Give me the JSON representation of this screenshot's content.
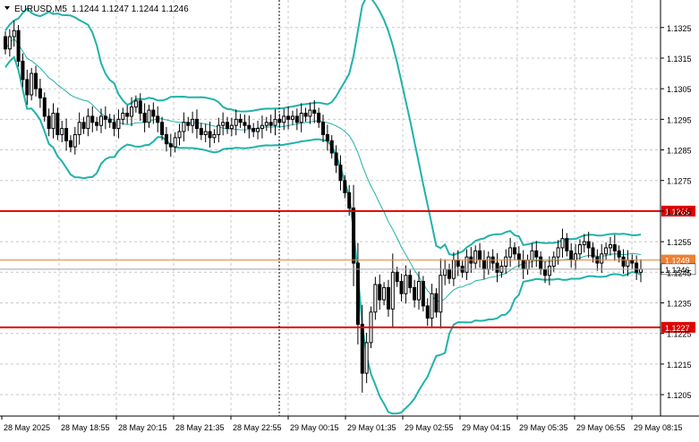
{
  "header": {
    "symbol": "EURUSD,M5",
    "ohlc": "1.1244 1.1247 1.1244 1.1246"
  },
  "colors": {
    "background": "#ffffff",
    "grid": "#c8c8c8",
    "candle": "#000000",
    "bollinger_band": "#20b2aa",
    "ma_line": "#20b2aa",
    "support_resistance": "#e00000",
    "current_level": "#f08030",
    "bid_line": "#a0a0a0"
  },
  "chart_data": {
    "type": "candlestick",
    "indicator": "Bollinger Bands",
    "ylim": [
      1.1198,
      1.1334
    ],
    "y_ticks": [
      "1.1325",
      "1.1315",
      "1.1305",
      "1.1295",
      "1.1285",
      "1.1275",
      "1.1265",
      "1.1255",
      "1.1245",
      "1.1235",
      "1.1225",
      "1.1215",
      "1.1205"
    ],
    "x_ticks": [
      "28 May 2025",
      "28 May 18:55",
      "28 May 20:15",
      "28 May 21:35",
      "28 May 22:55",
      "29 May 00:15",
      "29 May 01:35",
      "29 May 02:55",
      "29 May 04:15",
      "29 May 05:35",
      "29 May 06:55",
      "29 May 08:15"
    ],
    "horizontal_levels": [
      {
        "label": "1.1265",
        "value": 1.1265,
        "style": "resistance"
      },
      {
        "label": "1.1249",
        "value": 1.1249,
        "style": "level"
      },
      {
        "label": "1.1227",
        "value": 1.1227,
        "style": "support"
      }
    ],
    "current_price": {
      "label": "1.1246",
      "value": 1.1246
    },
    "closes": [
      1.1318,
      1.1322,
      1.1324,
      1.1314,
      1.1308,
      1.1303,
      1.131,
      1.1305,
      1.1302,
      1.1296,
      1.1292,
      1.1297,
      1.129,
      1.1292,
      1.1288,
      1.1286,
      1.129,
      1.1294,
      1.1292,
      1.1296,
      1.1294,
      1.1293,
      1.1296,
      1.1295,
      1.1294,
      1.1292,
      1.1295,
      1.1297,
      1.1296,
      1.1299,
      1.1301,
      1.1297,
      1.1294,
      1.1298,
      1.1296,
      1.1294,
      1.129,
      1.1287,
      1.1286,
      1.1289,
      1.1291,
      1.1294,
      1.1293,
      1.1295,
      1.1292,
      1.129,
      1.1291,
      1.1289,
      1.129,
      1.1293,
      1.1294,
      1.1292,
      1.1293,
      1.1295,
      1.1294,
      1.1293,
      1.1292,
      1.1291,
      1.1292,
      1.1293,
      1.1294,
      1.1293,
      1.1295,
      1.1294,
      1.1296,
      1.1295,
      1.1296,
      1.1294,
      1.1297,
      1.1296,
      1.1298,
      1.1297,
      1.1294,
      1.129,
      1.1288,
      1.1284,
      1.128,
      1.1275,
      1.1271,
      1.1266,
      1.1248,
      1.1228,
      1.1212,
      1.1222,
      1.1232,
      1.1241,
      1.1236,
      1.124,
      1.1233,
      1.1245,
      1.1242,
      1.1238,
      1.1244,
      1.124,
      1.1236,
      1.1242,
      1.1234,
      1.123,
      1.1238,
      1.1232,
      1.1244,
      1.1246,
      1.1243,
      1.1249,
      1.1247,
      1.1245,
      1.125,
      1.1248,
      1.1252,
      1.1249,
      1.1246,
      1.125,
      1.1248,
      1.1245,
      1.1247,
      1.125,
      1.1253,
      1.1251,
      1.1249,
      1.1246,
      1.1249,
      1.1252,
      1.125,
      1.1246,
      1.1244,
      1.1247,
      1.125,
      1.1253,
      1.1256,
      1.1252,
      1.1249,
      1.1251,
      1.1254,
      1.1255,
      1.1253,
      1.125,
      1.1248,
      1.1251,
      1.1253,
      1.1254,
      1.1252,
      1.125,
      1.1247,
      1.1249,
      1.1248,
      1.1245,
      1.1246
    ]
  }
}
